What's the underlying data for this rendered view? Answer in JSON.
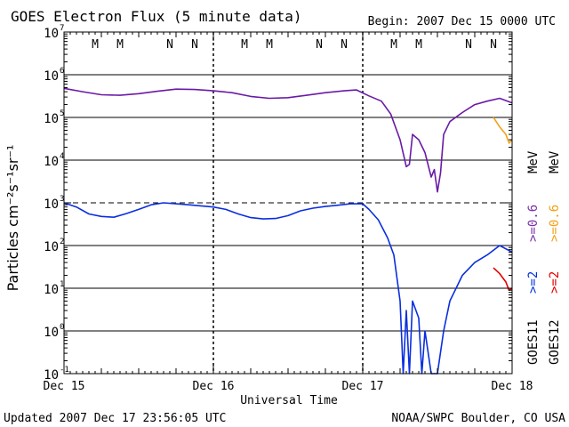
{
  "header": {
    "title": "GOES Electron Flux (5 minute data)",
    "begin": "Begin: 2007 Dec 15 0000 UTC"
  },
  "footer": {
    "updated": "Updated 2007 Dec 17 23:56:05 UTC",
    "credit": "NOAA/SWPC Boulder, CO USA"
  },
  "chart_data": {
    "type": "line",
    "title": "GOES Electron Flux (5 minute data)",
    "xlabel": "Universal Time",
    "ylabel": "Particles cm⁻²s⁻¹sr⁻¹",
    "yscale": "log",
    "ylim": [
      0.1,
      10000000
    ],
    "xlim": [
      "2007-12-15 00:00",
      "2007-12-18 00:00"
    ],
    "x_ticks": [
      "Dec 15",
      "Dec 16",
      "Dec 17",
      "Dec 18"
    ],
    "y_ticks": [
      {
        "value": 0.1,
        "base": "10",
        "exp": "-1"
      },
      {
        "value": 1,
        "base": "10",
        "exp": "0"
      },
      {
        "value": 10,
        "base": "10",
        "exp": "1"
      },
      {
        "value": 100,
        "base": "10",
        "exp": "2"
      },
      {
        "value": 1000,
        "base": "10",
        "exp": "3"
      },
      {
        "value": 10000,
        "base": "10",
        "exp": "4"
      },
      {
        "value": 100000,
        "base": "10",
        "exp": "5"
      },
      {
        "value": 1000000,
        "base": "10",
        "exp": "6"
      },
      {
        "value": 10000000,
        "base": "10",
        "exp": "7"
      }
    ],
    "alert_threshold": 1000,
    "grid": true,
    "markers": [
      {
        "label": "M",
        "x": "2007-12-15 05:00",
        "color": "#dd0000"
      },
      {
        "label": "M",
        "x": "2007-12-15 09:00",
        "color": "#0000cc"
      },
      {
        "label": "N",
        "x": "2007-12-15 17:00",
        "color": "#dd0000"
      },
      {
        "label": "N",
        "x": "2007-12-15 21:00",
        "color": "#0000cc"
      },
      {
        "label": "M",
        "x": "2007-12-16 05:00",
        "color": "#dd0000"
      },
      {
        "label": "M",
        "x": "2007-12-16 09:00",
        "color": "#0000cc"
      },
      {
        "label": "N",
        "x": "2007-12-16 17:00",
        "color": "#dd0000"
      },
      {
        "label": "N",
        "x": "2007-12-16 21:00",
        "color": "#0000cc"
      },
      {
        "label": "M",
        "x": "2007-12-17 05:00",
        "color": "#dd0000"
      },
      {
        "label": "M",
        "x": "2007-12-17 09:00",
        "color": "#0000cc"
      },
      {
        "label": "N",
        "x": "2007-12-17 17:00",
        "color": "#dd0000"
      },
      {
        "label": "N",
        "x": "2007-12-17 21:00",
        "color": "#0000cc"
      }
    ],
    "legend": {
      "satellites": [
        "GOES11",
        "GOES12"
      ],
      "entries": [
        {
          "text": ">=2",
          "color": "#0033dd",
          "column": 0,
          "row": 0
        },
        {
          "text": ">=0.6",
          "color": "#7b2fa8",
          "column": 0,
          "row": 1
        },
        {
          "text": "MeV",
          "color": "#000000",
          "column": 0,
          "row": 2
        },
        {
          "text": ">=2",
          "color": "#e00000",
          "column": 1,
          "row": 0
        },
        {
          "text": ">=0.6",
          "color": "#f2a21a",
          "column": 1,
          "row": 1
        },
        {
          "text": "MeV",
          "color": "#000000",
          "column": 1,
          "row": 2
        }
      ],
      "placement": "right"
    },
    "series": [
      {
        "name": "GOES11 >=0.6 MeV",
        "color": "#6a1aa6",
        "points": [
          [
            "2007-12-15 00:00",
            480000
          ],
          [
            "2007-12-15 03:00",
            400000
          ],
          [
            "2007-12-15 06:00",
            340000
          ],
          [
            "2007-12-15 09:00",
            330000
          ],
          [
            "2007-12-15 12:00",
            360000
          ],
          [
            "2007-12-15 15:00",
            410000
          ],
          [
            "2007-12-15 18:00",
            460000
          ],
          [
            "2007-12-15 21:00",
            450000
          ],
          [
            "2007-12-16 00:00",
            420000
          ],
          [
            "2007-12-16 03:00",
            380000
          ],
          [
            "2007-12-16 06:00",
            310000
          ],
          [
            "2007-12-16 09:00",
            280000
          ],
          [
            "2007-12-16 12:00",
            290000
          ],
          [
            "2007-12-16 15:00",
            330000
          ],
          [
            "2007-12-16 18:00",
            380000
          ],
          [
            "2007-12-16 21:00",
            420000
          ],
          [
            "2007-12-16 23:00",
            440000
          ],
          [
            "2007-12-17 01:00",
            320000
          ],
          [
            "2007-12-17 03:00",
            240000
          ],
          [
            "2007-12-17 04:30",
            120000
          ],
          [
            "2007-12-17 06:00",
            30000
          ],
          [
            "2007-12-17 07:00",
            7000
          ],
          [
            "2007-12-17 07:30",
            8000
          ],
          [
            "2007-12-17 08:00",
            40000
          ],
          [
            "2007-12-17 09:00",
            30000
          ],
          [
            "2007-12-17 10:00",
            15000
          ],
          [
            "2007-12-17 11:00",
            4000
          ],
          [
            "2007-12-17 11:30",
            6000
          ],
          [
            "2007-12-17 12:00",
            1800
          ],
          [
            "2007-12-17 12:30",
            5000
          ],
          [
            "2007-12-17 13:00",
            40000
          ],
          [
            "2007-12-17 14:00",
            80000
          ],
          [
            "2007-12-17 16:00",
            130000
          ],
          [
            "2007-12-17 18:00",
            200000
          ],
          [
            "2007-12-17 20:00",
            240000
          ],
          [
            "2007-12-17 22:00",
            280000
          ],
          [
            "2007-12-17 24:00",
            220000
          ]
        ]
      },
      {
        "name": "GOES11 >=2 MeV",
        "color": "#0a2ee0",
        "points": [
          [
            "2007-12-15 00:00",
            1000
          ],
          [
            "2007-12-15 02:00",
            800
          ],
          [
            "2007-12-15 04:00",
            550
          ],
          [
            "2007-12-15 06:00",
            480
          ],
          [
            "2007-12-15 08:00",
            460
          ],
          [
            "2007-12-15 10:00",
            560
          ],
          [
            "2007-12-15 12:00",
            700
          ],
          [
            "2007-12-15 14:00",
            900
          ],
          [
            "2007-12-15 16:00",
            1000
          ],
          [
            "2007-12-15 18:00",
            950
          ],
          [
            "2007-12-15 20:00",
            900
          ],
          [
            "2007-12-15 22:00",
            850
          ],
          [
            "2007-12-16 00:00",
            800
          ],
          [
            "2007-12-16 02:00",
            700
          ],
          [
            "2007-12-16 04:00",
            550
          ],
          [
            "2007-12-16 06:00",
            450
          ],
          [
            "2007-12-16 08:00",
            420
          ],
          [
            "2007-12-16 10:00",
            430
          ],
          [
            "2007-12-16 12:00",
            500
          ],
          [
            "2007-12-16 14:00",
            650
          ],
          [
            "2007-12-16 16:00",
            750
          ],
          [
            "2007-12-16 18:00",
            820
          ],
          [
            "2007-12-16 20:00",
            880
          ],
          [
            "2007-12-16 22:00",
            950
          ],
          [
            "2007-12-16 24:00",
            950
          ],
          [
            "2007-12-17 01:00",
            700
          ],
          [
            "2007-12-17 02:30",
            400
          ],
          [
            "2007-12-17 04:00",
            150
          ],
          [
            "2007-12-17 05:00",
            60
          ],
          [
            "2007-12-17 06:00",
            5
          ],
          [
            "2007-12-17 06:30",
            0.1
          ],
          [
            "2007-12-17 07:00",
            3
          ],
          [
            "2007-12-17 07:30",
            0.1
          ],
          [
            "2007-12-17 08:00",
            5
          ],
          [
            "2007-12-17 09:00",
            2
          ],
          [
            "2007-12-17 09:30",
            0.1
          ],
          [
            "2007-12-17 10:00",
            1
          ],
          [
            "2007-12-17 11:00",
            0.1
          ],
          [
            "2007-12-17 12:00",
            0.1
          ],
          [
            "2007-12-17 13:00",
            1
          ],
          [
            "2007-12-17 14:00",
            5
          ],
          [
            "2007-12-17 16:00",
            20
          ],
          [
            "2007-12-17 18:00",
            40
          ],
          [
            "2007-12-17 20:00",
            60
          ],
          [
            "2007-12-17 22:00",
            100
          ],
          [
            "2007-12-17 24:00",
            70
          ]
        ]
      },
      {
        "name": "GOES12 >=0.6 MeV",
        "color": "#f2a21a",
        "points": [
          [
            "2007-12-17 21:00",
            100000
          ],
          [
            "2007-12-17 22:00",
            60000
          ],
          [
            "2007-12-17 23:00",
            40000
          ],
          [
            "2007-12-17 23:30",
            25000
          ],
          [
            "2007-12-17 24:00",
            30000
          ]
        ]
      },
      {
        "name": "GOES12 >=2 MeV",
        "color": "#e00000",
        "points": [
          [
            "2007-12-17 21:00",
            30
          ],
          [
            "2007-12-17 22:00",
            22
          ],
          [
            "2007-12-17 23:00",
            14
          ],
          [
            "2007-12-17 23:30",
            9
          ],
          [
            "2007-12-17 24:00",
            10
          ]
        ]
      }
    ]
  }
}
